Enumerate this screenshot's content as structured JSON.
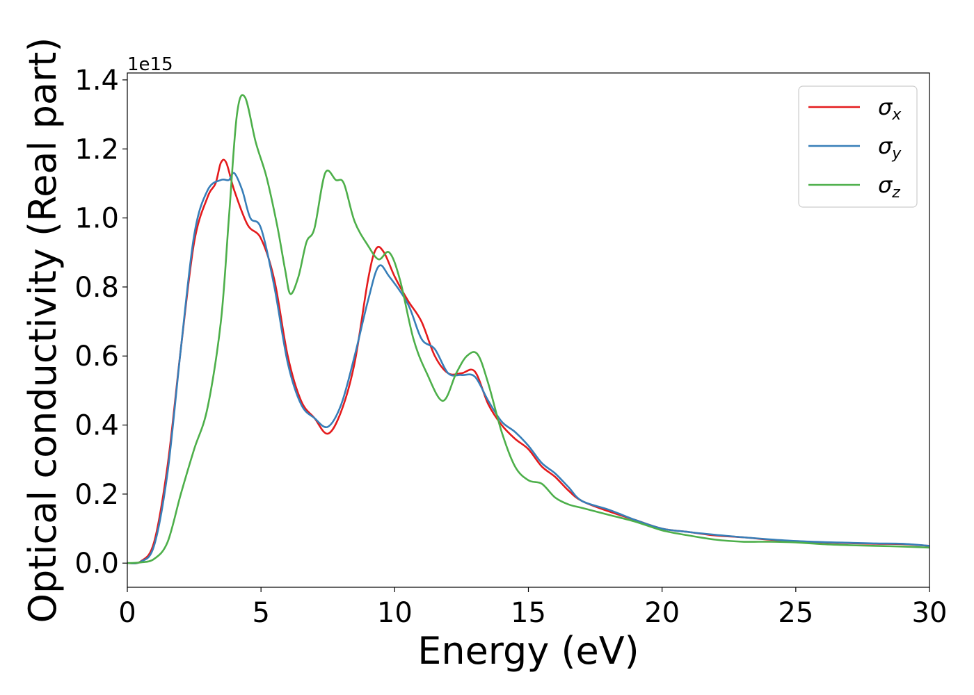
{
  "chart_data": {
    "type": "line",
    "xlabel": "Energy (eV)",
    "ylabel": "Optical conductivity (Real part)",
    "y_offset_text": "1e15",
    "xlim": [
      0,
      30
    ],
    "ylim": [
      -0.07,
      1.42
    ],
    "x_ticks": [
      0,
      5,
      10,
      15,
      20,
      25,
      30
    ],
    "x_tick_labels": [
      "0",
      "5",
      "10",
      "15",
      "20",
      "25",
      "30"
    ],
    "y_ticks": [
      0.0,
      0.2,
      0.4,
      0.6,
      0.8,
      1.0,
      1.2,
      1.4
    ],
    "y_tick_labels": [
      "0.0",
      "0.2",
      "0.4",
      "0.6",
      "0.8",
      "1.0",
      "1.2",
      "1.4"
    ],
    "grid": false,
    "legend_position": "top-right",
    "series": [
      {
        "name": "σx",
        "symbol": "σ",
        "subscript": "x",
        "color": "#e41a1c",
        "points": [
          [
            0,
            0
          ],
          [
            0.5,
            0.005
          ],
          [
            1,
            0.06
          ],
          [
            1.5,
            0.28
          ],
          [
            2,
            0.62
          ],
          [
            2.5,
            0.93
          ],
          [
            3,
            1.06
          ],
          [
            3.3,
            1.1
          ],
          [
            3.5,
            1.16
          ],
          [
            3.7,
            1.16
          ],
          [
            4,
            1.08
          ],
          [
            4.5,
            0.98
          ],
          [
            5,
            0.94
          ],
          [
            5.5,
            0.82
          ],
          [
            6,
            0.6
          ],
          [
            6.5,
            0.47
          ],
          [
            7,
            0.42
          ],
          [
            7.5,
            0.375
          ],
          [
            8,
            0.44
          ],
          [
            8.5,
            0.58
          ],
          [
            9,
            0.82
          ],
          [
            9.3,
            0.91
          ],
          [
            9.6,
            0.9
          ],
          [
            10,
            0.83
          ],
          [
            10.5,
            0.76
          ],
          [
            11,
            0.7
          ],
          [
            11.5,
            0.6
          ],
          [
            12,
            0.55
          ],
          [
            12.5,
            0.55
          ],
          [
            13,
            0.555
          ],
          [
            13.5,
            0.46
          ],
          [
            14,
            0.4
          ],
          [
            14.5,
            0.36
          ],
          [
            15,
            0.33
          ],
          [
            15.5,
            0.28
          ],
          [
            16,
            0.25
          ],
          [
            16.5,
            0.21
          ],
          [
            17,
            0.18
          ],
          [
            18,
            0.15
          ],
          [
            19,
            0.125
          ],
          [
            20,
            0.1
          ],
          [
            21,
            0.09
          ],
          [
            22,
            0.08
          ],
          [
            23,
            0.075
          ],
          [
            24,
            0.068
          ],
          [
            25,
            0.063
          ],
          [
            26,
            0.06
          ],
          [
            27,
            0.058
          ],
          [
            28,
            0.056
          ],
          [
            29,
            0.055
          ],
          [
            30,
            0.05
          ]
        ]
      },
      {
        "name": "σy",
        "symbol": "σ",
        "subscript": "y",
        "color": "#377eb8",
        "points": [
          [
            0,
            0
          ],
          [
            0.5,
            0.004
          ],
          [
            1,
            0.05
          ],
          [
            1.5,
            0.26
          ],
          [
            2,
            0.62
          ],
          [
            2.5,
            0.95
          ],
          [
            3,
            1.08
          ],
          [
            3.5,
            1.11
          ],
          [
            3.8,
            1.11
          ],
          [
            4,
            1.13
          ],
          [
            4.3,
            1.08
          ],
          [
            4.6,
            1.0
          ],
          [
            5,
            0.97
          ],
          [
            5.5,
            0.8
          ],
          [
            6,
            0.58
          ],
          [
            6.5,
            0.46
          ],
          [
            7,
            0.42
          ],
          [
            7.5,
            0.395
          ],
          [
            8,
            0.46
          ],
          [
            8.5,
            0.6
          ],
          [
            9,
            0.76
          ],
          [
            9.4,
            0.86
          ],
          [
            9.8,
            0.83
          ],
          [
            10.5,
            0.75
          ],
          [
            11,
            0.65
          ],
          [
            11.5,
            0.62
          ],
          [
            12,
            0.55
          ],
          [
            12.5,
            0.545
          ],
          [
            13,
            0.54
          ],
          [
            13.5,
            0.47
          ],
          [
            14,
            0.41
          ],
          [
            14.5,
            0.38
          ],
          [
            15,
            0.34
          ],
          [
            15.5,
            0.29
          ],
          [
            16,
            0.26
          ],
          [
            16.5,
            0.22
          ],
          [
            17,
            0.18
          ],
          [
            18,
            0.155
          ],
          [
            19,
            0.125
          ],
          [
            20,
            0.1
          ],
          [
            21,
            0.09
          ],
          [
            22,
            0.082
          ],
          [
            23,
            0.075
          ],
          [
            24,
            0.069
          ],
          [
            25,
            0.064
          ],
          [
            26,
            0.061
          ],
          [
            27,
            0.059
          ],
          [
            28,
            0.057
          ],
          [
            29,
            0.056
          ],
          [
            30,
            0.05
          ]
        ]
      },
      {
        "name": "σz",
        "symbol": "σ",
        "subscript": "z",
        "color": "#4daf4a",
        "points": [
          [
            0,
            0
          ],
          [
            0.5,
            0.002
          ],
          [
            1,
            0.012
          ],
          [
            1.5,
            0.06
          ],
          [
            2,
            0.2
          ],
          [
            2.5,
            0.33
          ],
          [
            3,
            0.45
          ],
          [
            3.5,
            0.7
          ],
          [
            3.8,
            1.0
          ],
          [
            4.1,
            1.3
          ],
          [
            4.4,
            1.35
          ],
          [
            4.8,
            1.22
          ],
          [
            5.2,
            1.12
          ],
          [
            5.6,
            0.98
          ],
          [
            5.9,
            0.85
          ],
          [
            6.1,
            0.78
          ],
          [
            6.4,
            0.83
          ],
          [
            6.7,
            0.93
          ],
          [
            7,
            0.97
          ],
          [
            7.4,
            1.13
          ],
          [
            7.8,
            1.11
          ],
          [
            8.1,
            1.1
          ],
          [
            8.5,
            0.99
          ],
          [
            9,
            0.92
          ],
          [
            9.4,
            0.88
          ],
          [
            9.8,
            0.9
          ],
          [
            10.2,
            0.82
          ],
          [
            10.7,
            0.65
          ],
          [
            11.2,
            0.55
          ],
          [
            11.8,
            0.47
          ],
          [
            12.3,
            0.55
          ],
          [
            12.7,
            0.6
          ],
          [
            13.1,
            0.605
          ],
          [
            13.5,
            0.52
          ],
          [
            14,
            0.38
          ],
          [
            14.5,
            0.28
          ],
          [
            15,
            0.24
          ],
          [
            15.5,
            0.23
          ],
          [
            16,
            0.19
          ],
          [
            16.5,
            0.17
          ],
          [
            17,
            0.16
          ],
          [
            18,
            0.14
          ],
          [
            19,
            0.12
          ],
          [
            20,
            0.095
          ],
          [
            21,
            0.08
          ],
          [
            22,
            0.068
          ],
          [
            23,
            0.062
          ],
          [
            24,
            0.062
          ],
          [
            25,
            0.06
          ],
          [
            26,
            0.055
          ],
          [
            27,
            0.052
          ],
          [
            28,
            0.05
          ],
          [
            29,
            0.048
          ],
          [
            30,
            0.045
          ]
        ]
      }
    ]
  }
}
